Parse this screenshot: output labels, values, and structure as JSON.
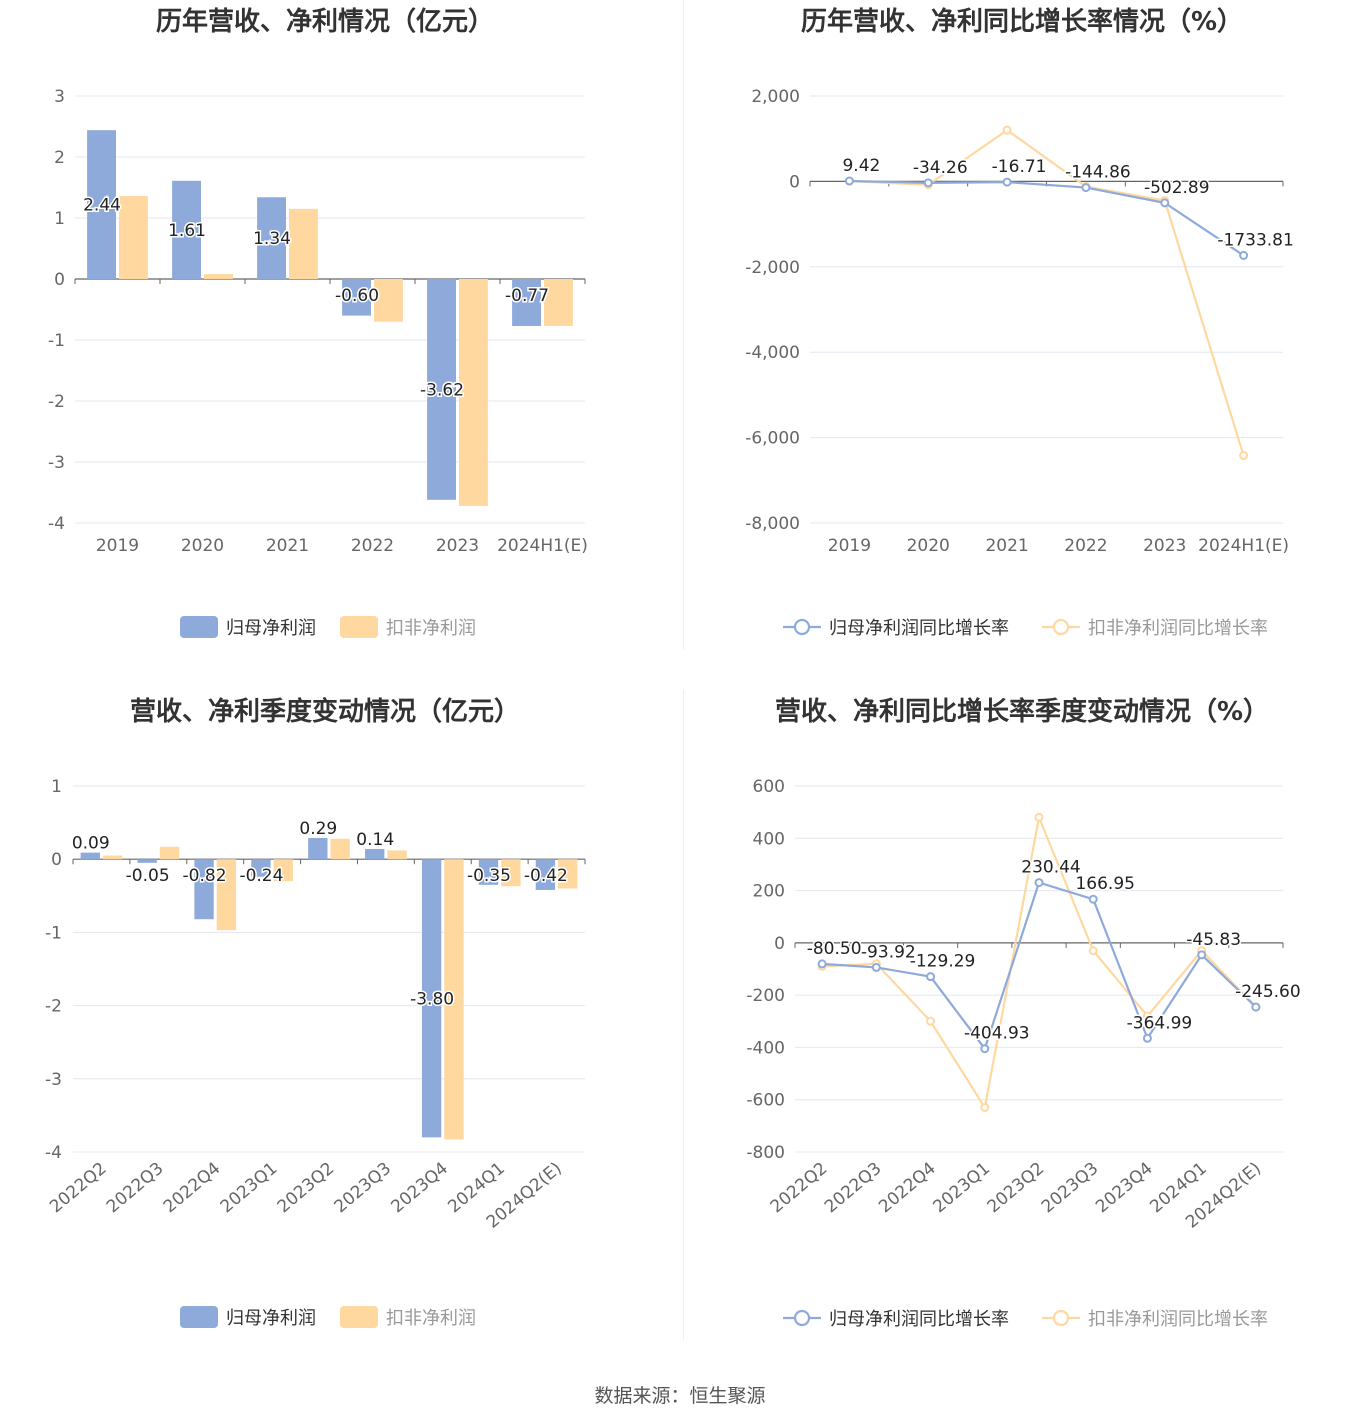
{
  "colors": {
    "blue": "#8eaadb",
    "orange": "#ffd8a0",
    "axis": "#666666",
    "grid": "#e4e6f0",
    "title": "#333333"
  },
  "source": "数据来源：恒生聚源",
  "chart_data": [
    {
      "type": "bar",
      "title": "历年营收、净利情况（亿元）",
      "categories": [
        "2019",
        "2020",
        "2021",
        "2022",
        "2023",
        "2024H1(E)"
      ],
      "ylim": [
        -4,
        3
      ],
      "yticks": [
        3,
        2,
        1,
        0,
        -1,
        -2,
        -3,
        -4
      ],
      "series": [
        {
          "name": "归母净利润",
          "values": [
            2.44,
            1.61,
            1.34,
            -0.6,
            -3.62,
            -0.77
          ]
        },
        {
          "name": "扣非净利润",
          "values": [
            1.36,
            0.08,
            1.15,
            -0.7,
            -3.72,
            -0.77
          ]
        }
      ],
      "labels": [
        "2.44",
        "1.61",
        "1.34",
        "-0.60",
        "-3.62",
        "-0.77"
      ],
      "legend": "bottom-center",
      "grid": true
    },
    {
      "type": "line",
      "title": "历年营收、净利同比增长率情况（%）",
      "categories": [
        "2019",
        "2020",
        "2021",
        "2022",
        "2023",
        "2024H1(E)"
      ],
      "ylim": [
        -8000,
        2000
      ],
      "yticks": [
        2000,
        0,
        -2000,
        -4000,
        -6000,
        -8000
      ],
      "ytick_labels": [
        "2,000",
        "0",
        "-2,000",
        "-4,000",
        "-6,000",
        "-8,000"
      ],
      "series": [
        {
          "name": "归母净利润同比增长率",
          "values": [
            9.42,
            -34.26,
            -16.71,
            -144.86,
            -502.89,
            -1733.81
          ]
        },
        {
          "name": "扣非净利润同比增长率",
          "values": [
            5,
            -80,
            1200,
            -120,
            -450,
            -6420
          ]
        }
      ],
      "labels": [
        "9.42",
        "-34.26",
        "-16.71",
        "-144.86",
        "-502.89",
        "-1733.81"
      ],
      "legend": "bottom-center",
      "grid": true
    },
    {
      "type": "bar",
      "title": "营收、净利季度变动情况（亿元）",
      "categories": [
        "2022Q2",
        "2022Q3",
        "2022Q4",
        "2023Q1",
        "2023Q2",
        "2023Q3",
        "2023Q4",
        "2024Q1",
        "2024Q2(E)"
      ],
      "ylim": [
        -4,
        1
      ],
      "yticks": [
        1,
        0,
        -1,
        -2,
        -3,
        -4
      ],
      "series": [
        {
          "name": "归母净利润",
          "values": [
            0.09,
            -0.05,
            -0.82,
            -0.24,
            0.29,
            0.14,
            -3.8,
            -0.35,
            -0.42
          ]
        },
        {
          "name": "扣非净利润",
          "values": [
            0.05,
            0.17,
            -0.97,
            -0.3,
            0.28,
            0.12,
            -3.83,
            -0.37,
            -0.4
          ]
        }
      ],
      "labels": [
        "0.09",
        "-0.05",
        "-0.82",
        "-0.24",
        "0.29",
        "0.14",
        "-3.80",
        "-0.35",
        "-0.42"
      ],
      "legend": "bottom-center",
      "grid": true
    },
    {
      "type": "line",
      "title": "营收、净利同比增长率季度变动情况（%）",
      "categories": [
        "2022Q2",
        "2022Q3",
        "2022Q4",
        "2023Q1",
        "2023Q2",
        "2023Q3",
        "2023Q4",
        "2024Q1",
        "2024Q2(E)"
      ],
      "ylim": [
        -800,
        600
      ],
      "yticks": [
        600,
        400,
        200,
        0,
        -200,
        -400,
        -600,
        -800
      ],
      "series": [
        {
          "name": "归母净利润同比增长率",
          "values": [
            -80.5,
            -93.92,
            -129.29,
            -404.93,
            230.44,
            166.95,
            -364.99,
            -45.83,
            -245.6
          ]
        },
        {
          "name": "扣非净利润同比增长率",
          "values": [
            -90,
            -80,
            -300,
            -630,
            480,
            -30,
            -280,
            -30,
            -245
          ]
        }
      ],
      "labels": [
        "-80.50",
        "-93.92",
        "-129.29",
        "-404.93",
        "230.44",
        "166.95",
        "-364.99",
        "-45.83",
        "-245.60"
      ],
      "legend": "bottom-center",
      "grid": true
    }
  ]
}
